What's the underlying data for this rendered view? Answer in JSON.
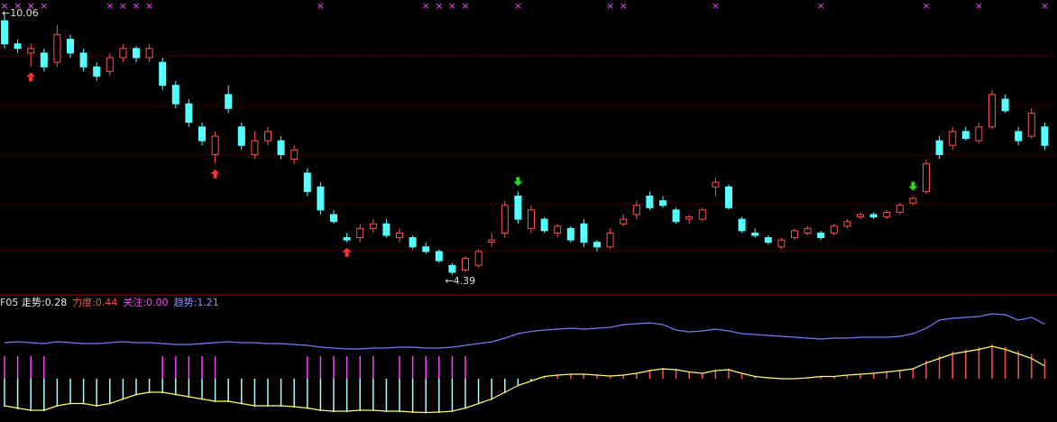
{
  "chart_data": [
    {
      "type": "candlestick",
      "ylim": [
        4.0,
        10.35
      ],
      "grid_values": [
        9.14,
        8.05,
        6.99,
        5.93,
        4.92
      ],
      "up_color": "#ff5050",
      "down_color": "#54ffff",
      "grid_color": "#8a0000",
      "high_label": "←10.06",
      "high_index": 0,
      "high_value": 10.06,
      "low_label": "←4.39",
      "low_index": 34,
      "low_value": 4.39,
      "cross_symbol": "×",
      "cross_color": "#ff40ff",
      "cross_markers": [
        0,
        1,
        2,
        3,
        8,
        9,
        10,
        11,
        24,
        32,
        33,
        34,
        35,
        39,
        46,
        47,
        54,
        62,
        70,
        74,
        79
      ],
      "signal_up": [
        2,
        16,
        26
      ],
      "signal_up_color": "#ff3030",
      "signal_down": [
        39,
        69
      ],
      "signal_down_color": "#20e020",
      "candles": [
        [
          9.9,
          10.06,
          9.3,
          9.4
        ],
        [
          9.4,
          9.5,
          9.2,
          9.3
        ],
        [
          9.2,
          9.4,
          8.9,
          9.3
        ],
        [
          9.2,
          9.3,
          8.8,
          8.9
        ],
        [
          9.0,
          9.8,
          8.9,
          9.6
        ],
        [
          9.5,
          9.6,
          9.1,
          9.2
        ],
        [
          9.2,
          9.3,
          8.8,
          8.9
        ],
        [
          8.9,
          9.0,
          8.6,
          8.7
        ],
        [
          8.8,
          9.2,
          8.7,
          9.1
        ],
        [
          9.1,
          9.4,
          9.0,
          9.3
        ],
        [
          9.3,
          9.35,
          9.0,
          9.1
        ],
        [
          9.1,
          9.4,
          9.0,
          9.3
        ],
        [
          9.0,
          9.1,
          8.4,
          8.5
        ],
        [
          8.5,
          8.6,
          8.0,
          8.1
        ],
        [
          8.1,
          8.2,
          7.6,
          7.7
        ],
        [
          7.6,
          7.7,
          7.2,
          7.3
        ],
        [
          7.0,
          7.5,
          6.8,
          7.4
        ],
        [
          8.3,
          8.5,
          7.9,
          8.0
        ],
        [
          7.6,
          7.7,
          7.1,
          7.2
        ],
        [
          7.0,
          7.5,
          6.9,
          7.3
        ],
        [
          7.3,
          7.6,
          7.2,
          7.5
        ],
        [
          7.3,
          7.4,
          6.9,
          7.0
        ],
        [
          6.9,
          7.2,
          6.8,
          7.1
        ],
        [
          6.6,
          6.7,
          6.1,
          6.2
        ],
        [
          6.3,
          6.4,
          5.7,
          5.8
        ],
        [
          5.7,
          5.8,
          5.5,
          5.55
        ],
        [
          5.2,
          5.3,
          5.1,
          5.15
        ],
        [
          5.2,
          5.5,
          5.1,
          5.4
        ],
        [
          5.4,
          5.6,
          5.3,
          5.5
        ],
        [
          5.5,
          5.6,
          5.2,
          5.25
        ],
        [
          5.2,
          5.4,
          5.1,
          5.3
        ],
        [
          5.2,
          5.25,
          4.95,
          5.0
        ],
        [
          5.0,
          5.1,
          4.85,
          4.9
        ],
        [
          4.9,
          4.95,
          4.65,
          4.7
        ],
        [
          4.6,
          4.65,
          4.39,
          4.45
        ],
        [
          4.5,
          4.8,
          4.45,
          4.75
        ],
        [
          4.6,
          4.95,
          4.55,
          4.9
        ],
        [
          5.1,
          5.3,
          5.0,
          5.15
        ],
        [
          5.3,
          6.0,
          5.2,
          5.9
        ],
        [
          6.1,
          6.2,
          5.5,
          5.6
        ],
        [
          5.4,
          5.9,
          5.3,
          5.8
        ],
        [
          5.6,
          5.65,
          5.3,
          5.35
        ],
        [
          5.3,
          5.5,
          5.2,
          5.45
        ],
        [
          5.4,
          5.45,
          5.1,
          5.15
        ],
        [
          5.5,
          5.6,
          5.0,
          5.1
        ],
        [
          5.1,
          5.15,
          4.9,
          5.0
        ],
        [
          5.0,
          5.4,
          4.95,
          5.3
        ],
        [
          5.5,
          5.7,
          5.45,
          5.6
        ],
        [
          5.7,
          6.0,
          5.6,
          5.9
        ],
        [
          6.1,
          6.2,
          5.8,
          5.85
        ],
        [
          6.0,
          6.1,
          5.85,
          5.9
        ],
        [
          5.8,
          5.85,
          5.5,
          5.55
        ],
        [
          5.6,
          5.7,
          5.5,
          5.65
        ],
        [
          5.6,
          5.85,
          5.55,
          5.8
        ],
        [
          6.3,
          6.5,
          6.1,
          6.4
        ],
        [
          6.3,
          6.35,
          5.8,
          5.85
        ],
        [
          5.6,
          5.65,
          5.3,
          5.35
        ],
        [
          5.3,
          5.4,
          5.2,
          5.25
        ],
        [
          5.2,
          5.25,
          5.05,
          5.1
        ],
        [
          5.0,
          5.2,
          4.95,
          5.15
        ],
        [
          5.2,
          5.4,
          5.15,
          5.35
        ],
        [
          5.3,
          5.45,
          5.25,
          5.4
        ],
        [
          5.3,
          5.35,
          5.15,
          5.2
        ],
        [
          5.3,
          5.5,
          5.25,
          5.45
        ],
        [
          5.45,
          5.6,
          5.4,
          5.55
        ],
        [
          5.65,
          5.75,
          5.6,
          5.7
        ],
        [
          5.7,
          5.75,
          5.6,
          5.65
        ],
        [
          5.65,
          5.8,
          5.6,
          5.75
        ],
        [
          5.75,
          5.95,
          5.7,
          5.9
        ],
        [
          5.95,
          6.1,
          5.9,
          6.05
        ],
        [
          6.2,
          6.9,
          6.15,
          6.8
        ],
        [
          7.3,
          7.4,
          6.9,
          7.0
        ],
        [
          7.2,
          7.6,
          7.1,
          7.5
        ],
        [
          7.5,
          7.6,
          7.3,
          7.35
        ],
        [
          7.3,
          7.7,
          7.25,
          7.6
        ],
        [
          7.6,
          8.4,
          7.55,
          8.3
        ],
        [
          8.2,
          8.3,
          7.9,
          7.95
        ],
        [
          7.5,
          7.6,
          7.2,
          7.3
        ],
        [
          7.4,
          8.0,
          7.35,
          7.9
        ],
        [
          7.6,
          7.7,
          7.1,
          7.2
        ]
      ]
    },
    {
      "type": "indicator",
      "title": "F05",
      "ylim": [
        -0.96,
        1.8
      ],
      "legend": [
        {
          "text": "走势:0.28",
          "color": "#f0f0f0"
        },
        {
          "text": "力度:0.44",
          "color": "#ff5050"
        },
        {
          "text": "关注:0.00",
          "color": "#ff40ff"
        },
        {
          "text": "趋势:1.21",
          "color": "#9090ff"
        }
      ],
      "series": [
        {
          "kind": "line",
          "color": "#ffff60",
          "values": [
            -0.6,
            -0.65,
            -0.7,
            -0.7,
            -0.6,
            -0.55,
            -0.55,
            -0.6,
            -0.55,
            -0.45,
            -0.35,
            -0.3,
            -0.3,
            -0.35,
            -0.4,
            -0.45,
            -0.5,
            -0.5,
            -0.55,
            -0.6,
            -0.6,
            -0.6,
            -0.62,
            -0.65,
            -0.7,
            -0.72,
            -0.72,
            -0.7,
            -0.7,
            -0.72,
            -0.72,
            -0.74,
            -0.75,
            -0.74,
            -0.72,
            -0.65,
            -0.55,
            -0.45,
            -0.3,
            -0.15,
            -0.05,
            0.05,
            0.08,
            0.1,
            0.1,
            0.08,
            0.06,
            0.08,
            0.12,
            0.18,
            0.22,
            0.2,
            0.15,
            0.12,
            0.18,
            0.2,
            0.12,
            0.05,
            0.02,
            0.0,
            0.0,
            0.02,
            0.05,
            0.05,
            0.08,
            0.1,
            0.12,
            0.15,
            0.18,
            0.22,
            0.35,
            0.45,
            0.55,
            0.6,
            0.65,
            0.72,
            0.65,
            0.55,
            0.45,
            0.28
          ]
        },
        {
          "kind": "bar",
          "color": "#ff5050",
          "neg_color": "#a8ffff",
          "values": [
            -0.62,
            -0.68,
            -0.72,
            -0.72,
            -0.62,
            -0.57,
            -0.57,
            -0.62,
            -0.57,
            -0.47,
            -0.37,
            -0.32,
            -0.32,
            -0.37,
            -0.42,
            -0.47,
            -0.52,
            -0.52,
            -0.57,
            -0.62,
            -0.62,
            -0.62,
            -0.64,
            -0.67,
            -0.72,
            -0.74,
            -0.74,
            -0.72,
            -0.72,
            -0.74,
            -0.74,
            -0.76,
            -0.77,
            -0.76,
            -0.74,
            -0.67,
            -0.57,
            -0.47,
            -0.32,
            -0.17,
            -0.06,
            0.06,
            0.09,
            0.11,
            0.11,
            0.09,
            0.07,
            0.09,
            0.13,
            0.2,
            0.24,
            0.22,
            0.17,
            0.13,
            0.2,
            0.22,
            0.13,
            0.06,
            0.03,
            0.01,
            0.01,
            0.03,
            0.06,
            0.06,
            0.09,
            0.11,
            0.13,
            0.17,
            0.2,
            0.24,
            0.4,
            0.5,
            0.6,
            0.65,
            0.7,
            0.75,
            0.7,
            0.62,
            0.55,
            0.44
          ]
        },
        {
          "kind": "bar",
          "color": "#ff40ff",
          "values": [
            0.5,
            0.5,
            0.5,
            0.5,
            0,
            0,
            0,
            0,
            0,
            0,
            0,
            0,
            0.5,
            0.5,
            0.5,
            0.5,
            0.5,
            0,
            0,
            0,
            0,
            0,
            0,
            0.5,
            0.5,
            0.5,
            0.5,
            0.5,
            0.5,
            0,
            0.5,
            0.5,
            0.5,
            0.5,
            0.5,
            0.5,
            0,
            0,
            0,
            0,
            0,
            0,
            0,
            0,
            0,
            0,
            0,
            0,
            0,
            0,
            0,
            0,
            0,
            0,
            0,
            0,
            0,
            0,
            0,
            0,
            0,
            0,
            0,
            0,
            0,
            0,
            0,
            0,
            0,
            0,
            0,
            0,
            0,
            0,
            0,
            0,
            0,
            0,
            0,
            0
          ]
        },
        {
          "kind": "line",
          "color": "#7878ff",
          "values": [
            0.8,
            0.82,
            0.8,
            0.78,
            0.82,
            0.8,
            0.78,
            0.78,
            0.8,
            0.82,
            0.8,
            0.8,
            0.78,
            0.76,
            0.76,
            0.78,
            0.8,
            0.82,
            0.8,
            0.8,
            0.78,
            0.78,
            0.76,
            0.74,
            0.7,
            0.68,
            0.66,
            0.66,
            0.68,
            0.68,
            0.7,
            0.7,
            0.68,
            0.68,
            0.7,
            0.74,
            0.78,
            0.82,
            0.9,
            1.0,
            1.05,
            1.08,
            1.1,
            1.12,
            1.1,
            1.12,
            1.14,
            1.2,
            1.22,
            1.24,
            1.2,
            1.08,
            1.04,
            1.06,
            1.1,
            1.06,
            1.0,
            0.98,
            0.96,
            0.94,
            0.92,
            0.9,
            0.88,
            0.9,
            0.9,
            0.92,
            0.92,
            0.92,
            0.94,
            1.0,
            1.12,
            1.3,
            1.34,
            1.36,
            1.38,
            1.44,
            1.42,
            1.3,
            1.36,
            1.21
          ]
        }
      ]
    }
  ]
}
